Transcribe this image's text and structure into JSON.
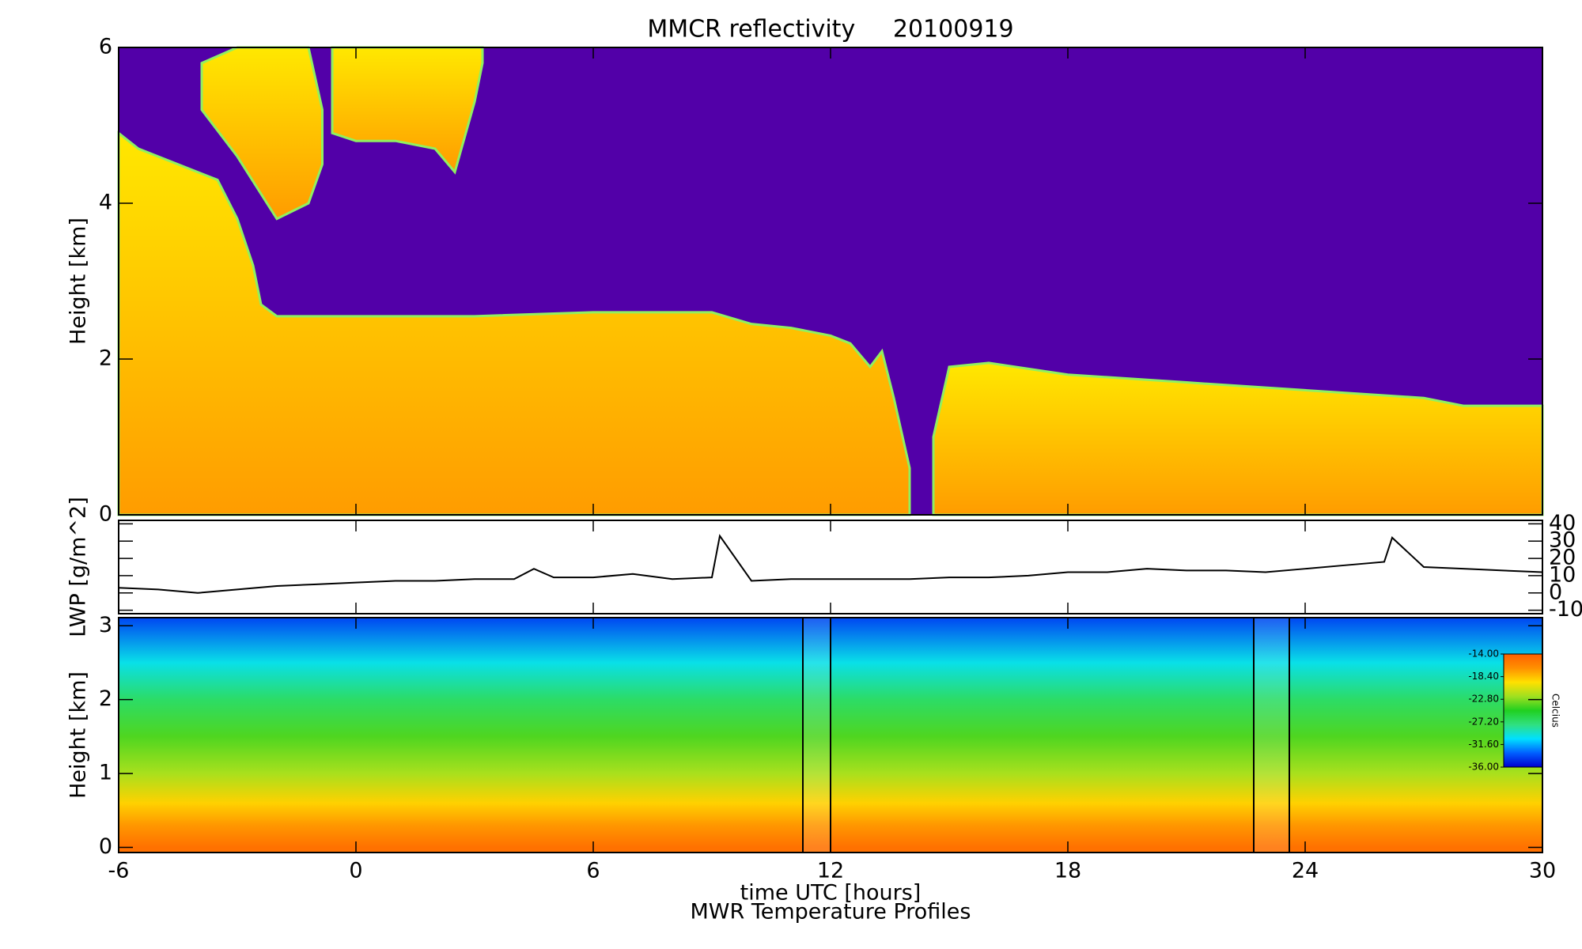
{
  "chart_data": [
    {
      "type": "cloud",
      "title": "MMCR reflectivity     20100919",
      "ylabel": "Height [km]",
      "xlim": [
        -6,
        30
      ],
      "ylim": [
        0,
        6
      ],
      "yticks": [
        0,
        2,
        4,
        6
      ],
      "background": "#5200a8",
      "cloud_colors": [
        "#ff9c00",
        "#ffe800"
      ],
      "edge_color": "#90f060",
      "layers": [
        {
          "x": [
            -6,
            -5.5,
            -5,
            -4.5,
            -4,
            -3.5,
            -3,
            -2.6,
            -2.4,
            -2,
            0,
            3,
            6,
            8,
            9,
            10,
            11,
            12,
            12.5,
            13,
            13.3,
            13.6,
            14.0,
            14.2,
            14.6,
            15,
            16,
            18,
            21,
            24,
            27,
            28,
            30
          ],
          "base": [
            0,
            0,
            0,
            0,
            0,
            0,
            0,
            0,
            0,
            0,
            0,
            0,
            0,
            0,
            0,
            0,
            0,
            0,
            0,
            0,
            0,
            0,
            0,
            null,
            0,
            0,
            0,
            0,
            0,
            0,
            0,
            0,
            0
          ],
          "top": [
            4.9,
            4.7,
            4.6,
            4.5,
            4.4,
            4.3,
            3.8,
            3.2,
            2.7,
            2.55,
            2.55,
            2.55,
            2.6,
            2.6,
            2.6,
            2.45,
            2.4,
            2.3,
            2.2,
            1.9,
            2.1,
            1.5,
            0.6,
            null,
            1.0,
            1.9,
            1.95,
            1.8,
            1.7,
            1.6,
            1.5,
            1.4,
            1.4
          ]
        },
        {
          "x": [
            -3.9,
            -3,
            -2,
            -1.2,
            -0.85
          ],
          "base": [
            5.2,
            4.6,
            3.8,
            4.0,
            4.5
          ],
          "top": [
            5.8,
            6,
            6,
            6,
            5.2
          ]
        },
        {
          "x": [
            -0.6,
            0,
            1,
            2,
            2.5,
            3,
            3.2
          ],
          "base": [
            4.9,
            4.8,
            4.8,
            4.7,
            4.4,
            5.3,
            5.8
          ],
          "top": [
            6,
            6,
            6,
            6,
            6,
            6,
            6
          ]
        }
      ]
    },
    {
      "type": "line",
      "ylabel": "LWP [g/m^2]",
      "xlim": [
        -6,
        30
      ],
      "ylim": [
        -12,
        42
      ],
      "yticks": [
        -10,
        0,
        10,
        20,
        30,
        40
      ],
      "ytick_side": "right",
      "color": "#000000",
      "x": [
        -6,
        -5,
        -4,
        -3,
        -2,
        -1,
        0,
        1,
        2,
        3,
        4,
        4.5,
        5,
        6,
        7,
        8,
        9,
        9.2,
        10,
        11,
        12,
        13,
        14,
        15,
        16,
        17,
        18,
        19,
        20,
        21,
        22,
        23,
        24,
        25,
        26,
        26.2,
        27,
        28,
        29,
        30
      ],
      "values": [
        3,
        2,
        0,
        2,
        4,
        5,
        6,
        7,
        7,
        8,
        8,
        14,
        9,
        9,
        11,
        8,
        9,
        33,
        7,
        8,
        8,
        8,
        8,
        9,
        9,
        10,
        12,
        12,
        14,
        13,
        13,
        12,
        14,
        16,
        18,
        32,
        15,
        14,
        13,
        12
      ]
    },
    {
      "type": "contour",
      "ylabel": "Height [km]",
      "xlabel": "time UTC [hours]",
      "subtitle": "MWR Temperature Profiles",
      "xlim": [
        -6,
        30
      ],
      "xticks": [
        -6,
        0,
        6,
        12,
        18,
        24,
        30
      ],
      "ylim": [
        -0.07,
        3.11
      ],
      "yticks": [
        0,
        1,
        2,
        3
      ],
      "heights": [
        0,
        0.3,
        0.6,
        1,
        1.5,
        2,
        2.5,
        3.11
      ],
      "values": [
        -15,
        -17,
        -19,
        -22,
        -24,
        -27,
        -30,
        -34
      ],
      "missing": [
        [
          11.3,
          12.0
        ],
        [
          22.7,
          23.6
        ]
      ],
      "clim": [
        -36,
        -14
      ],
      "colormap": [
        "#0000d0",
        "#0060ff",
        "#00e0ff",
        "#30e080",
        "#20d020",
        "#a0e020",
        "#ffe000",
        "#ff9000",
        "#ff6000"
      ],
      "colorbar_ticks": [
        {
          "value": -14,
          "label": "-14.00"
        },
        {
          "value": -18.4,
          "label": "-18.40"
        },
        {
          "value": -22.8,
          "label": "-22.80"
        },
        {
          "value": -27.2,
          "label": "-27.20"
        },
        {
          "value": -31.6,
          "label": "-31.60"
        },
        {
          "value": -36,
          "label": "-36.00"
        }
      ],
      "colorbar_label": "Celcius"
    }
  ]
}
